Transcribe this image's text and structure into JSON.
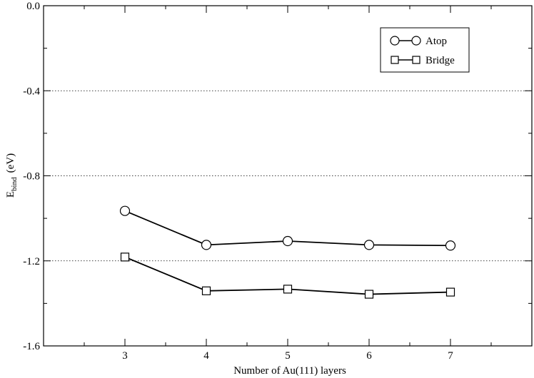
{
  "chart_data": {
    "type": "line",
    "xlabel": "Number of Au(111) layers",
    "ylabel": {
      "main": "E",
      "subscript": "bind",
      "unit": "(eV)"
    },
    "x": [
      3,
      4,
      5,
      6,
      7
    ],
    "xlim": [
      2,
      8
    ],
    "ylim": [
      -1.6,
      0.0
    ],
    "xticks": [
      3,
      4,
      5,
      6,
      7
    ],
    "yticks": [
      0.0,
      -0.4,
      -0.8,
      -1.2,
      -1.6
    ],
    "ytick_labels": [
      "0.0",
      "-0.4",
      "-0.8",
      "-1.2",
      "-1.6"
    ],
    "grid": {
      "horizontal_dotted_at": [
        -0.4,
        -0.8,
        -1.2
      ]
    },
    "legend": {
      "placement": "top-right"
    },
    "series": [
      {
        "name": "Atop",
        "marker": "circle",
        "values": [
          -0.965,
          -1.125,
          -1.107,
          -1.125,
          -1.128
        ]
      },
      {
        "name": "Bridge",
        "marker": "square",
        "values": [
          -1.182,
          -1.341,
          -1.333,
          -1.357,
          -1.347
        ]
      }
    ],
    "colors": {
      "line": "#000000",
      "background": "#ffffff"
    }
  }
}
